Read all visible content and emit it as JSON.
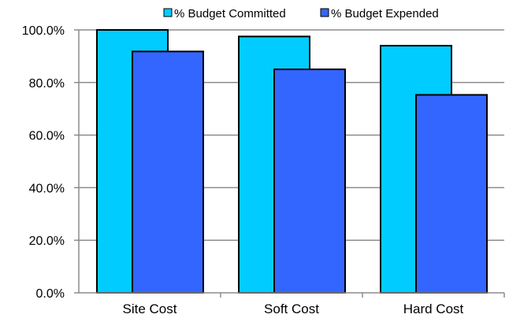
{
  "chart_data": {
    "type": "bar",
    "categories": [
      "Site Cost",
      "Soft Cost",
      "Hard Cost"
    ],
    "series": [
      {
        "name": "% Budget Committed",
        "values": [
          100.0,
          97.5,
          94.0
        ],
        "color": "#00ccff"
      },
      {
        "name": "% Budget Expended",
        "values": [
          91.8,
          85.0,
          75.3
        ],
        "color": "#3366ff"
      }
    ],
    "ylim": [
      0,
      100
    ],
    "yticks": [
      "0.0%",
      "20.0%",
      "40.0%",
      "60.0%",
      "80.0%",
      "100.0%"
    ],
    "grid": true,
    "legend_position": "top-right",
    "title": "",
    "xlabel": "",
    "ylabel": ""
  }
}
